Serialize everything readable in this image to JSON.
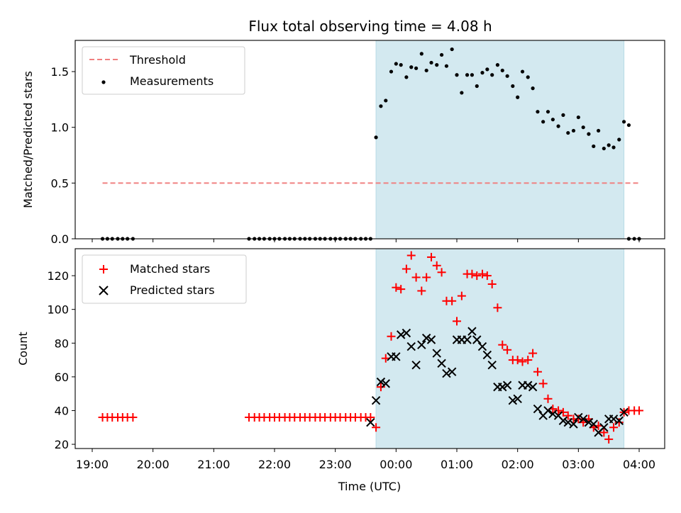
{
  "figure_title": "Flux total observing time = 4.08 h",
  "colors": {
    "shade": "#d3e9f0",
    "shade_edge": "#b8dbe6",
    "threshold": "#f08080",
    "matched": "#ff0000",
    "predicted": "#000000",
    "measurement": "#000000"
  },
  "chart_data": [
    {
      "type": "scatter",
      "title": "Flux total observing time = 4.08 h",
      "xlabel": "",
      "ylabel": "Matched/Predicted stars",
      "xlim_hours": [
        18.72,
        28.42
      ],
      "ylim": [
        0,
        1.78
      ],
      "yticks": [
        0.0,
        0.5,
        1.0,
        1.5
      ],
      "ytick_labels": [
        "0.0",
        "0.5",
        "1.0",
        "1.5"
      ],
      "legend_position": "top-left",
      "legend": {
        "threshold": "Threshold",
        "measurements": "Measurements"
      },
      "shaded_interval_hours": [
        23.67,
        27.75
      ],
      "threshold": {
        "value": 0.5,
        "x_range_hours": [
          19.17,
          28.0
        ]
      },
      "zero_x_hours": [
        19.17,
        19.25,
        19.33,
        19.42,
        19.5,
        19.58,
        19.67,
        21.58,
        21.67,
        21.75,
        21.83,
        21.92,
        22.0,
        22.08,
        22.17,
        22.25,
        22.33,
        22.42,
        22.5,
        22.58,
        22.67,
        22.75,
        22.83,
        22.92,
        23.0,
        23.08,
        23.17,
        23.25,
        23.33,
        23.42,
        23.5,
        23.58,
        27.83,
        27.92,
        28.0
      ],
      "measurements": [
        [
          23.67,
          0.91
        ],
        [
          23.75,
          1.19
        ],
        [
          23.83,
          1.24
        ],
        [
          23.92,
          1.5
        ],
        [
          24.0,
          1.57
        ],
        [
          24.08,
          1.56
        ],
        [
          24.17,
          1.45
        ],
        [
          24.25,
          1.54
        ],
        [
          24.33,
          1.53
        ],
        [
          24.42,
          1.66
        ],
        [
          24.5,
          1.51
        ],
        [
          24.58,
          1.58
        ],
        [
          24.67,
          1.56
        ],
        [
          24.75,
          1.65
        ],
        [
          24.83,
          1.55
        ],
        [
          24.92,
          1.7
        ],
        [
          25.0,
          1.47
        ],
        [
          25.08,
          1.31
        ],
        [
          25.17,
          1.47
        ],
        [
          25.25,
          1.47
        ],
        [
          25.33,
          1.37
        ],
        [
          25.42,
          1.49
        ],
        [
          25.5,
          1.52
        ],
        [
          25.58,
          1.47
        ],
        [
          25.67,
          1.56
        ],
        [
          25.75,
          1.51
        ],
        [
          25.83,
          1.46
        ],
        [
          25.92,
          1.37
        ],
        [
          26.0,
          1.27
        ],
        [
          26.08,
          1.5
        ],
        [
          26.17,
          1.45
        ],
        [
          26.25,
          1.35
        ],
        [
          26.33,
          1.14
        ],
        [
          26.42,
          1.05
        ],
        [
          26.5,
          1.14
        ],
        [
          26.58,
          1.07
        ],
        [
          26.67,
          1.01
        ],
        [
          26.75,
          1.11
        ],
        [
          26.83,
          0.95
        ],
        [
          26.92,
          0.97
        ],
        [
          27.0,
          1.09
        ],
        [
          27.08,
          1.0
        ],
        [
          27.17,
          0.94
        ],
        [
          27.25,
          0.83
        ],
        [
          27.33,
          0.97
        ],
        [
          27.42,
          0.81
        ],
        [
          27.5,
          0.84
        ],
        [
          27.58,
          0.82
        ],
        [
          27.67,
          0.89
        ],
        [
          27.75,
          1.05
        ],
        [
          27.83,
          1.02
        ]
      ]
    },
    {
      "type": "scatter",
      "title": "",
      "xlabel": "Time (UTC)",
      "ylabel": "Count",
      "xlim_hours": [
        18.72,
        28.42
      ],
      "ylim": [
        17.5,
        136
      ],
      "yticks": [
        20,
        40,
        60,
        80,
        100,
        120
      ],
      "ytick_labels": [
        "20",
        "40",
        "60",
        "80",
        "100",
        "120"
      ],
      "xticks_hours": [
        19,
        20,
        21,
        22,
        23,
        24,
        25,
        26,
        27,
        28
      ],
      "xtick_labels": [
        "19:00",
        "20:00",
        "21:00",
        "22:00",
        "23:00",
        "00:00",
        "01:00",
        "02:00",
        "03:00",
        "04:00"
      ],
      "legend_position": "top-left",
      "legend": {
        "matched": "Matched stars",
        "predicted": "Predicted stars"
      },
      "shaded_interval_hours": [
        23.67,
        27.75
      ],
      "series": [
        {
          "name": "Matched stars",
          "marker": "plus",
          "points": [
            [
              19.17,
              36
            ],
            [
              19.25,
              36
            ],
            [
              19.33,
              36
            ],
            [
              19.42,
              36
            ],
            [
              19.5,
              36
            ],
            [
              19.58,
              36
            ],
            [
              19.67,
              36
            ],
            [
              21.58,
              36
            ],
            [
              21.67,
              36
            ],
            [
              21.75,
              36
            ],
            [
              21.83,
              36
            ],
            [
              21.92,
              36
            ],
            [
              22.0,
              36
            ],
            [
              22.08,
              36
            ],
            [
              22.17,
              36
            ],
            [
              22.25,
              36
            ],
            [
              22.33,
              36
            ],
            [
              22.42,
              36
            ],
            [
              22.5,
              36
            ],
            [
              22.58,
              36
            ],
            [
              22.67,
              36
            ],
            [
              22.75,
              36
            ],
            [
              22.83,
              36
            ],
            [
              22.92,
              36
            ],
            [
              23.0,
              36
            ],
            [
              23.08,
              36
            ],
            [
              23.17,
              36
            ],
            [
              23.25,
              36
            ],
            [
              23.33,
              36
            ],
            [
              23.42,
              36
            ],
            [
              23.5,
              36
            ],
            [
              23.58,
              36
            ],
            [
              23.67,
              30
            ],
            [
              23.75,
              54
            ],
            [
              23.83,
              71
            ],
            [
              23.92,
              84
            ],
            [
              24.0,
              113
            ],
            [
              24.08,
              112
            ],
            [
              24.17,
              124
            ],
            [
              24.25,
              132
            ],
            [
              24.33,
              119
            ],
            [
              24.42,
              111
            ],
            [
              24.5,
              119
            ],
            [
              24.58,
              131
            ],
            [
              24.67,
              126
            ],
            [
              24.75,
              122
            ],
            [
              24.83,
              105
            ],
            [
              24.92,
              105
            ],
            [
              25.0,
              93
            ],
            [
              25.08,
              108
            ],
            [
              25.17,
              121
            ],
            [
              25.25,
              121
            ],
            [
              25.33,
              120
            ],
            [
              25.42,
              121
            ],
            [
              25.5,
              120
            ],
            [
              25.58,
              115
            ],
            [
              25.67,
              101
            ],
            [
              25.75,
              79
            ],
            [
              25.83,
              76
            ],
            [
              25.92,
              70
            ],
            [
              26.0,
              70
            ],
            [
              26.08,
              69
            ],
            [
              26.17,
              70
            ],
            [
              26.25,
              74
            ],
            [
              26.33,
              63
            ],
            [
              26.42,
              56
            ],
            [
              26.5,
              47
            ],
            [
              26.58,
              41
            ],
            [
              26.67,
              40
            ],
            [
              26.75,
              39
            ],
            [
              26.83,
              37
            ],
            [
              26.92,
              35
            ],
            [
              27.0,
              35
            ],
            [
              27.08,
              33
            ],
            [
              27.17,
              35
            ],
            [
              27.25,
              30
            ],
            [
              27.33,
              31
            ],
            [
              27.42,
              27
            ],
            [
              27.5,
              23
            ],
            [
              27.58,
              30
            ],
            [
              27.67,
              33
            ],
            [
              27.75,
              39
            ],
            [
              27.83,
              40
            ],
            [
              27.92,
              40
            ],
            [
              28.0,
              40
            ]
          ]
        },
        {
          "name": "Predicted stars",
          "marker": "x",
          "points": [
            [
              23.58,
              33
            ],
            [
              23.67,
              46
            ],
            [
              23.75,
              57
            ],
            [
              23.83,
              56
            ],
            [
              23.92,
              72
            ],
            [
              24.0,
              72
            ],
            [
              24.08,
              85
            ],
            [
              24.17,
              86
            ],
            [
              24.25,
              78
            ],
            [
              24.33,
              67
            ],
            [
              24.42,
              79
            ],
            [
              24.5,
              83
            ],
            [
              24.58,
              82
            ],
            [
              24.67,
              74
            ],
            [
              24.75,
              68
            ],
            [
              24.83,
              62
            ],
            [
              24.92,
              63
            ],
            [
              25.0,
              82
            ],
            [
              25.08,
              82
            ],
            [
              25.17,
              82
            ],
            [
              25.25,
              87
            ],
            [
              25.33,
              82
            ],
            [
              25.42,
              78
            ],
            [
              25.5,
              73
            ],
            [
              25.58,
              67
            ],
            [
              25.67,
              54
            ],
            [
              25.75,
              54
            ],
            [
              25.83,
              55
            ],
            [
              25.92,
              46
            ],
            [
              26.0,
              47
            ],
            [
              26.08,
              55
            ],
            [
              26.17,
              55
            ],
            [
              26.25,
              54
            ],
            [
              26.33,
              41
            ],
            [
              26.42,
              37
            ],
            [
              26.5,
              40
            ],
            [
              26.58,
              38
            ],
            [
              26.67,
              37
            ],
            [
              26.75,
              34
            ],
            [
              26.83,
              33
            ],
            [
              26.92,
              32
            ],
            [
              27.0,
              36
            ],
            [
              27.08,
              35
            ],
            [
              27.17,
              33
            ],
            [
              27.25,
              32
            ],
            [
              27.33,
              27
            ],
            [
              27.42,
              30
            ],
            [
              27.5,
              35
            ],
            [
              27.58,
              35
            ],
            [
              27.67,
              34
            ],
            [
              27.75,
              39
            ]
          ]
        }
      ]
    }
  ]
}
